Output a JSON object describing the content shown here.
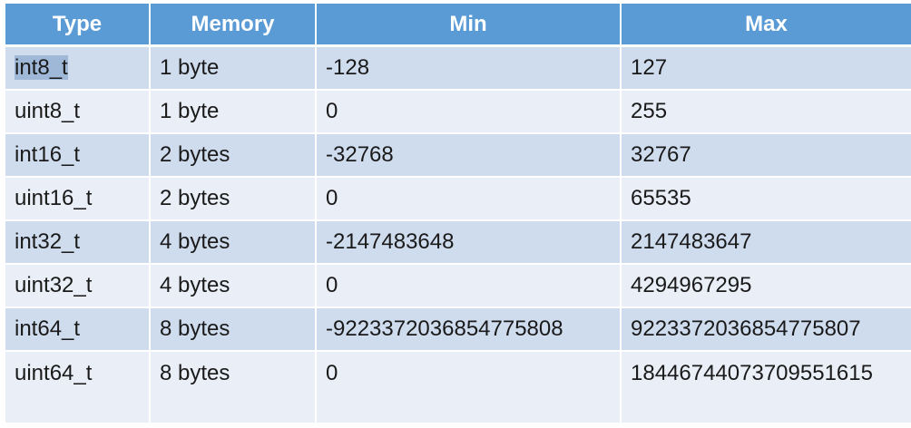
{
  "table": {
    "headers": [
      "Type",
      "Memory",
      "Min",
      "Max"
    ],
    "rows": [
      {
        "type": "int8_t",
        "memory": "1 byte",
        "min": "-128",
        "max": "127"
      },
      {
        "type": "uint8_t",
        "memory": "1 byte",
        "min": "0",
        "max": "255"
      },
      {
        "type": "int16_t",
        "memory": "2 bytes",
        "min": "-32768",
        "max": "32767"
      },
      {
        "type": "uint16_t",
        "memory": "2 bytes",
        "min": "0",
        "max": "65535"
      },
      {
        "type": "int32_t",
        "memory": "4 bytes",
        "min": "-2147483648",
        "max": "2147483647"
      },
      {
        "type": "uint32_t",
        "memory": "4 bytes",
        "min": "0",
        "max": "4294967295"
      },
      {
        "type": "int64_t",
        "memory": "8 bytes",
        "min": "-9223372036854775808",
        "max": "9223372036854775807"
      },
      {
        "type": "uint64_t",
        "memory": "8 bytes",
        "min": "0",
        "max": "18446744073709551615"
      }
    ]
  },
  "colors": {
    "header_bg": "#5b9bd5",
    "row_odd_bg": "#cfdcee",
    "row_even_bg": "#e9eef7",
    "selection_bg": "#9fb8d8"
  }
}
